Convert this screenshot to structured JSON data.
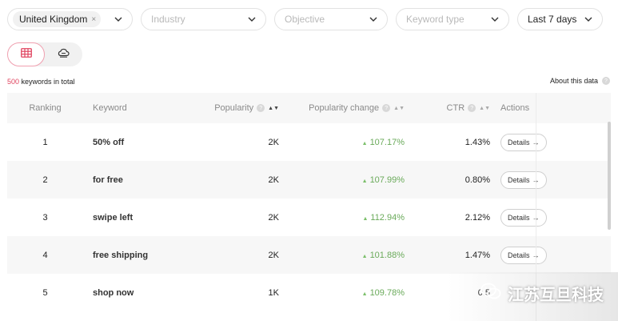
{
  "filters": {
    "country": {
      "value": "United Kingdom",
      "remove_label": "×"
    },
    "industry": {
      "placeholder": "Industry"
    },
    "objective": {
      "placeholder": "Objective"
    },
    "keyword_type": {
      "placeholder": "Keyword type"
    },
    "period": {
      "value": "Last 7 days"
    }
  },
  "view_toggle": {
    "active": "table-view",
    "options": [
      "table-icon",
      "cloud-icon"
    ]
  },
  "summary": {
    "count": "500",
    "text": " keywords in total"
  },
  "about": {
    "label": "About this data"
  },
  "table": {
    "headers": {
      "ranking": "Ranking",
      "keyword": "Keyword",
      "popularity": "Popularity",
      "popularity_change": "Popularity change",
      "ctr": "CTR",
      "actions": "Actions"
    },
    "rows": [
      {
        "rank": "1",
        "keyword": "50% off",
        "popularity": "2K",
        "change": "107.17%",
        "ctr": "1.43%",
        "action": "Details"
      },
      {
        "rank": "2",
        "keyword": "for free",
        "popularity": "2K",
        "change": "107.99%",
        "ctr": "0.80%",
        "action": "Details"
      },
      {
        "rank": "3",
        "keyword": "swipe left",
        "popularity": "2K",
        "change": "112.94%",
        "ctr": "2.12%",
        "action": "Details"
      },
      {
        "rank": "4",
        "keyword": "free shipping",
        "popularity": "2K",
        "change": "101.88%",
        "ctr": "1.47%",
        "action": "Details"
      },
      {
        "rank": "5",
        "keyword": "shop now",
        "popularity": "1K",
        "change": "109.78%",
        "ctr": "0.5",
        "action": ""
      }
    ]
  },
  "watermark": {
    "text": "江苏互旦科技"
  },
  "colors": {
    "accent": "#e0445f",
    "positive": "#6aaa5a",
    "row_alt": "#f7f7f7"
  }
}
